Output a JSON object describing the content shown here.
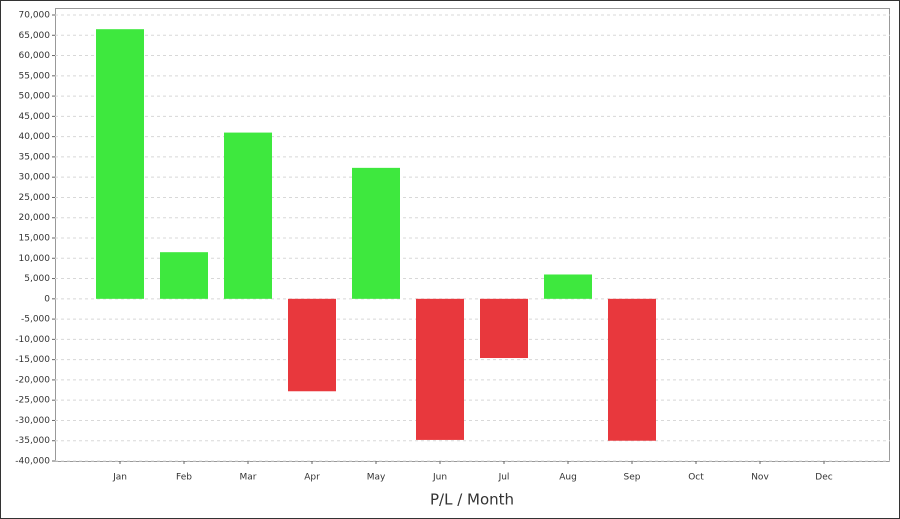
{
  "chart_data": {
    "type": "bar",
    "x_label": "P/L / Month",
    "categories": [
      "Jan",
      "Feb",
      "Mar",
      "Apr",
      "May",
      "Jun",
      "Jul",
      "Aug",
      "Sep",
      "Oct",
      "Nov",
      "Dec"
    ],
    "values": [
      66500,
      11500,
      41000,
      -22800,
      32300,
      -34800,
      -14600,
      6000,
      -35000,
      null,
      null,
      null
    ],
    "positive_color": "#3ee83e",
    "negative_color": "#e8383d",
    "ylim": [
      -40000,
      70000
    ],
    "yticks": [
      {
        "value": -40000,
        "label": "-40,000"
      },
      {
        "value": -35000,
        "label": "-35,000"
      },
      {
        "value": -30000,
        "label": "-30,000"
      },
      {
        "value": -25000,
        "label": "-25,000"
      },
      {
        "value": -20000,
        "label": "-20,000"
      },
      {
        "value": -15000,
        "label": "-15,000"
      },
      {
        "value": -10000,
        "label": "-10,000"
      },
      {
        "value": -5000,
        "label": "-5,000"
      },
      0,
      {
        "value": 5000,
        "label": "5,000"
      },
      {
        "value": 10000,
        "label": "10,000"
      },
      {
        "value": 15000,
        "label": "15,000"
      },
      {
        "value": 20000,
        "label": "20,000"
      },
      {
        "value": 25000,
        "label": "25,000"
      },
      {
        "value": 30000,
        "label": "30,000"
      },
      {
        "value": 35000,
        "label": "35,000"
      },
      {
        "value": 40000,
        "label": "40,000"
      },
      {
        "value": 45000,
        "label": "45,000"
      },
      {
        "value": 50000,
        "label": "50,000"
      },
      {
        "value": 55000,
        "label": "55,000"
      },
      {
        "value": 60000,
        "label": "60,000"
      },
      {
        "value": 65000,
        "label": "65,000"
      },
      {
        "value": 70000,
        "label": "70,000"
      }
    ],
    "grid": true
  }
}
